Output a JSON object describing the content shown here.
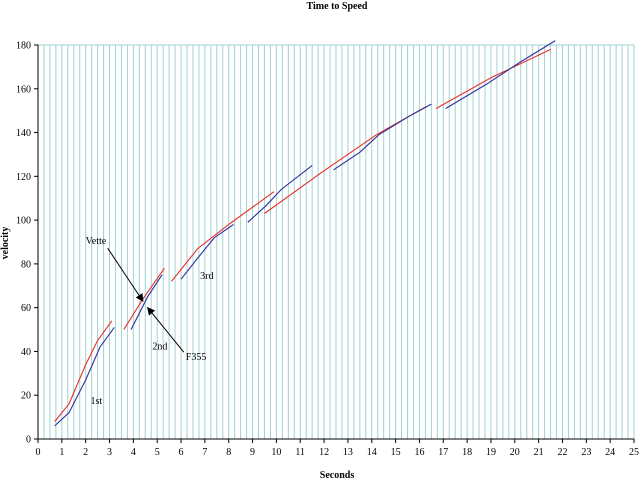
{
  "chart_data": {
    "type": "line",
    "title": "Time to Speed",
    "xlabel": "Seconds",
    "ylabel": "velocity",
    "xlim": [
      0,
      25
    ],
    "ylim": [
      0,
      180
    ],
    "x_ticks": [
      0,
      1,
      2,
      3,
      4,
      5,
      6,
      7,
      8,
      9,
      10,
      11,
      12,
      13,
      14,
      15,
      16,
      17,
      18,
      19,
      20,
      21,
      22,
      23,
      24,
      25
    ],
    "y_ticks": [
      0,
      20,
      40,
      60,
      80,
      100,
      120,
      140,
      160,
      180
    ],
    "vertical_grid_step": 0.25,
    "horizontal_grid": false,
    "legend": "none",
    "colors": {
      "red_series": "#e8302a",
      "blue_series": "#2f2fa0",
      "grid": "#9fd3d3",
      "axis": "#000000"
    },
    "series": [
      {
        "color_key": "red_series",
        "segments": [
          [
            [
              0.7,
              8
            ],
            [
              1.3,
              16
            ],
            [
              2,
              34
            ],
            [
              2.5,
              45
            ],
            [
              3.1,
              54
            ]
          ],
          [
            [
              3.6,
              50
            ],
            [
              4.4,
              64
            ],
            [
              5.3,
              78
            ]
          ],
          [
            [
              5.6,
              72
            ],
            [
              6.7,
              87
            ],
            [
              8,
              98
            ],
            [
              9.9,
              113
            ]
          ],
          [
            [
              9.5,
              103
            ],
            [
              11.8,
              121
            ],
            [
              14.2,
              139
            ],
            [
              16.3,
              152
            ]
          ],
          [
            [
              16.7,
              151
            ],
            [
              19,
              165
            ],
            [
              21.5,
              178
            ]
          ]
        ]
      },
      {
        "color_key": "blue_series",
        "segments": [
          [
            [
              0.7,
              6
            ],
            [
              1.3,
              12
            ],
            [
              2,
              27
            ],
            [
              2.6,
              42
            ],
            [
              3.2,
              51
            ]
          ],
          [
            [
              3.9,
              50
            ],
            [
              4.6,
              65
            ],
            [
              5.2,
              75
            ]
          ],
          [
            [
              6,
              73
            ],
            [
              6.8,
              84
            ],
            [
              7.4,
              92
            ],
            [
              8.2,
              98
            ]
          ],
          [
            [
              8.8,
              99
            ],
            [
              9.6,
              107
            ],
            [
              10.2,
              114
            ],
            [
              11.5,
              125
            ]
          ],
          [
            [
              12.4,
              123
            ],
            [
              13.5,
              131
            ],
            [
              14.3,
              139
            ],
            [
              15.5,
              147
            ],
            [
              16.5,
              153
            ]
          ],
          [
            [
              17.1,
              151
            ],
            [
              18.8,
              162
            ],
            [
              20.2,
              172
            ],
            [
              21.7,
              182
            ]
          ]
        ]
      }
    ],
    "annotations": [
      {
        "text": "Vette",
        "x": 2,
        "y": 89,
        "arrow_to": [
          4.4,
          63
        ]
      },
      {
        "text": "F355",
        "x": 6.2,
        "y": 36,
        "arrow_to": [
          4.6,
          60
        ]
      },
      {
        "text": "1st",
        "x": 2.2,
        "y": 16
      },
      {
        "text": "2nd",
        "x": 4.8,
        "y": 41
      },
      {
        "text": "3rd",
        "x": 6.8,
        "y": 73
      }
    ]
  }
}
